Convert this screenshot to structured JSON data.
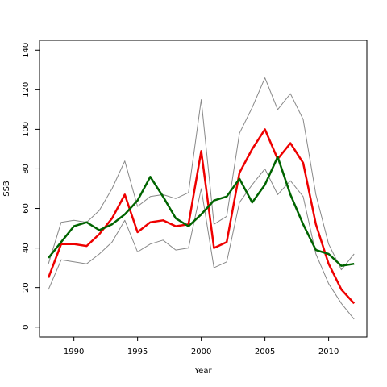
{
  "chart_data": {
    "type": "line",
    "xlabel": "Year",
    "ylabel": "SSB",
    "xlim": [
      1987.3,
      2013.0
    ],
    "ylim": [
      -5,
      145
    ],
    "x_ticks": [
      1990,
      1995,
      2000,
      2005,
      2010
    ],
    "y_ticks": [
      0,
      20,
      40,
      60,
      80,
      100,
      120,
      140
    ],
    "x": [
      1988,
      1989,
      1990,
      1991,
      1992,
      1993,
      1994,
      1995,
      1996,
      1997,
      1998,
      1999,
      2000,
      2001,
      2002,
      2003,
      2004,
      2005,
      2006,
      2007,
      2008,
      2009,
      2010,
      2011,
      2012
    ],
    "series": [
      {
        "color": "#888888",
        "width": 1,
        "values": [
          32,
          53,
          54,
          53,
          59,
          70,
          84,
          61,
          66,
          67,
          65,
          68,
          115,
          52,
          56,
          98,
          111,
          126,
          110,
          118,
          105,
          67,
          42,
          29,
          37
        ]
      },
      {
        "color": "#888888",
        "width": 1,
        "values": [
          19,
          34,
          33,
          32,
          37,
          43,
          54,
          38,
          42,
          44,
          39,
          40,
          70,
          30,
          33,
          63,
          72,
          80,
          67,
          74,
          66,
          37,
          22,
          12,
          4
        ]
      },
      {
        "color": "#ee0000",
        "width": 2.5,
        "values": [
          25,
          42,
          42,
          41,
          47,
          55,
          67,
          48,
          53,
          54,
          51,
          52,
          89,
          40,
          43,
          78,
          90,
          100,
          85,
          93,
          83,
          52,
          32,
          19,
          12
        ]
      },
      {
        "color": "#006400",
        "width": 2.5,
        "values": [
          35,
          43,
          51,
          53,
          49,
          52,
          57,
          64,
          76,
          66,
          55,
          51,
          57,
          64,
          66,
          75,
          63,
          72,
          86,
          67,
          52,
          39,
          37,
          31,
          32
        ]
      }
    ]
  }
}
